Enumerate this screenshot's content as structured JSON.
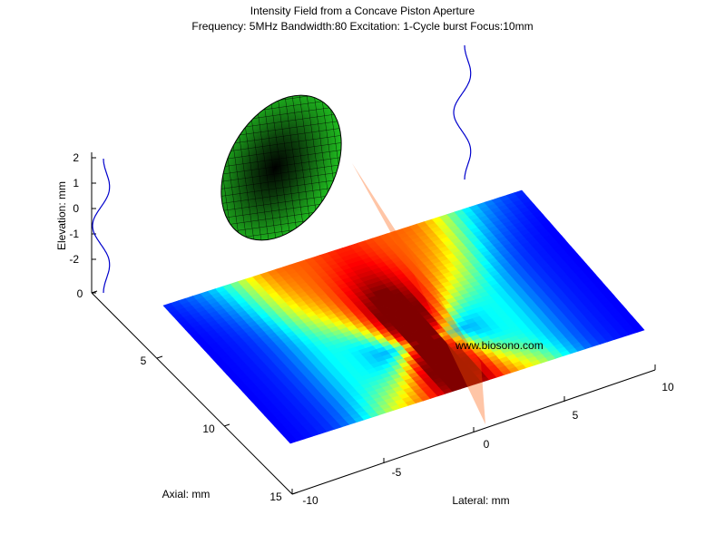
{
  "chart_data": {
    "type": "surface",
    "title": "Intensity Field from a Concave Piston Aperture",
    "subtitle": "Frequency: 5MHz  Bandwidth:80 Excitation: 1-Cycle burst Focus:10mm",
    "axes": {
      "lateral": {
        "label": "Lateral: mm",
        "range": [
          -10,
          10
        ],
        "ticks": [
          "-10",
          "-5",
          "0",
          "5",
          "10"
        ]
      },
      "axial": {
        "label": "Axial: mm",
        "range": [
          0,
          15
        ],
        "ticks": [
          "0",
          "5",
          "10",
          "15"
        ]
      },
      "elevation": {
        "label": "Elevation: mm",
        "range": [
          -3,
          2.5
        ],
        "ticks": [
          "2",
          "1",
          "0",
          "-1",
          "-2"
        ]
      }
    },
    "focus_mm": 10,
    "colormap": "jet",
    "watermark": "www.biosono.com"
  }
}
